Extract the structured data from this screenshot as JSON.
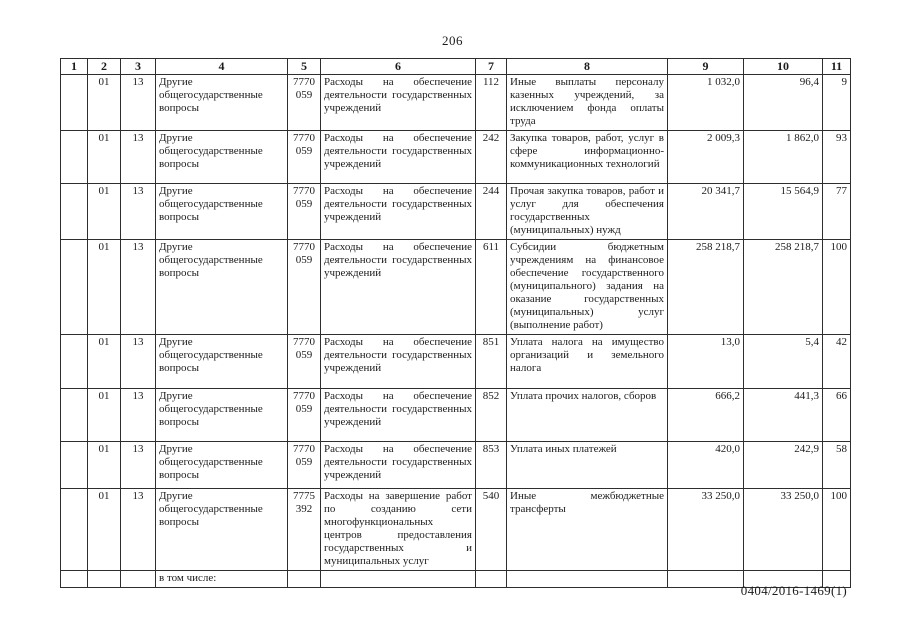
{
  "page": {
    "number": "206",
    "footer_code": "0404/2016-1469(1)"
  },
  "table": {
    "header": [
      "1",
      "2",
      "3",
      "4",
      "5",
      "6",
      "7",
      "8",
      "9",
      "10",
      "11"
    ],
    "rows": [
      {
        "c1": "",
        "c2": "01",
        "c3": "13",
        "c4": "Другие общегосударственные вопросы",
        "c5": "7770 059",
        "c6": "Расходы на обеспечение деятельности государственных учреждений",
        "c7": "112",
        "c8": "Иные выплаты персоналу казенных учреждений, за исключением фонда оплаты труда",
        "c9": "1 032,0",
        "c10": "96,4",
        "c11": "9"
      },
      {
        "c1": "",
        "c2": "01",
        "c3": "13",
        "c4": "Другие общегосударственные вопросы",
        "c5": "7770 059",
        "c6": "Расходы на обеспечение деятельности государственных учреждений",
        "c7": "242",
        "c8": "Закупка товаров, работ, услуг в сфере информационно-коммуникационных технологий",
        "c9": "2 009,3",
        "c10": "1 862,0",
        "c11": "93"
      },
      {
        "c1": "",
        "c2": "01",
        "c3": "13",
        "c4": "Другие общегосударственные вопросы",
        "c5": "7770 059",
        "c6": "Расходы на обеспечение деятельности государственных учреждений",
        "c7": "244",
        "c8": "Прочая закупка товаров, работ и услуг для обеспечения государственных (муниципальных) нужд",
        "c9": "20 341,7",
        "c10": "15 564,9",
        "c11": "77"
      },
      {
        "c1": "",
        "c2": "01",
        "c3": "13",
        "c4": "Другие общегосударственные вопросы",
        "c5": "7770 059",
        "c6": "Расходы на обеспечение деятельности государственных учреждений",
        "c7": "611",
        "c8": "Субсидии бюджетным учреждениям на финансовое обеспечение государственного (муниципального) задания на оказание государственных (муниципальных) услуг (выполнение работ)",
        "c9": "258 218,7",
        "c10": "258 218,7",
        "c11": "100"
      },
      {
        "c1": "",
        "c2": "01",
        "c3": "13",
        "c4": "Другие общегосударственные вопросы",
        "c5": "7770 059",
        "c6": "Расходы на обеспечение деятельности государственных учреждений",
        "c7": "851",
        "c8": "Уплата налога на имущество организаций и земельного налога",
        "c9": "13,0",
        "c10": "5,4",
        "c11": "42"
      },
      {
        "c1": "",
        "c2": "01",
        "c3": "13",
        "c4": "Другие общегосударственные вопросы",
        "c5": "7770 059",
        "c6": "Расходы на обеспечение деятельности государственных учреждений",
        "c7": "852",
        "c8": "Уплата прочих налогов, сборов",
        "c9": "666,2",
        "c10": "441,3",
        "c11": "66"
      },
      {
        "c1": "",
        "c2": "01",
        "c3": "13",
        "c4": "Другие общегосударственные вопросы",
        "c5": "7770 059",
        "c6": "Расходы на обеспечение деятельности государственных учреждений",
        "c7": "853",
        "c8": "Уплата иных платежей",
        "c9": "420,0",
        "c10": "242,9",
        "c11": "58"
      },
      {
        "c1": "",
        "c2": "01",
        "c3": "13",
        "c4": "Другие общегосударственные вопросы",
        "c5": "7775 392",
        "c6": "Расходы на завершение работ по созданию сети многофункциональных центров предоставления государственных и муниципальных услуг",
        "c7": "540",
        "c8": "Иные межбюджетные трансферты",
        "c9": "33 250,0",
        "c10": "33 250,0",
        "c11": "100"
      },
      {
        "c1": "",
        "c2": "",
        "c3": "",
        "c4": "в том числе:",
        "c5": "",
        "c6": "",
        "c7": "",
        "c8": "",
        "c9": "",
        "c10": "",
        "c11": ""
      }
    ]
  }
}
